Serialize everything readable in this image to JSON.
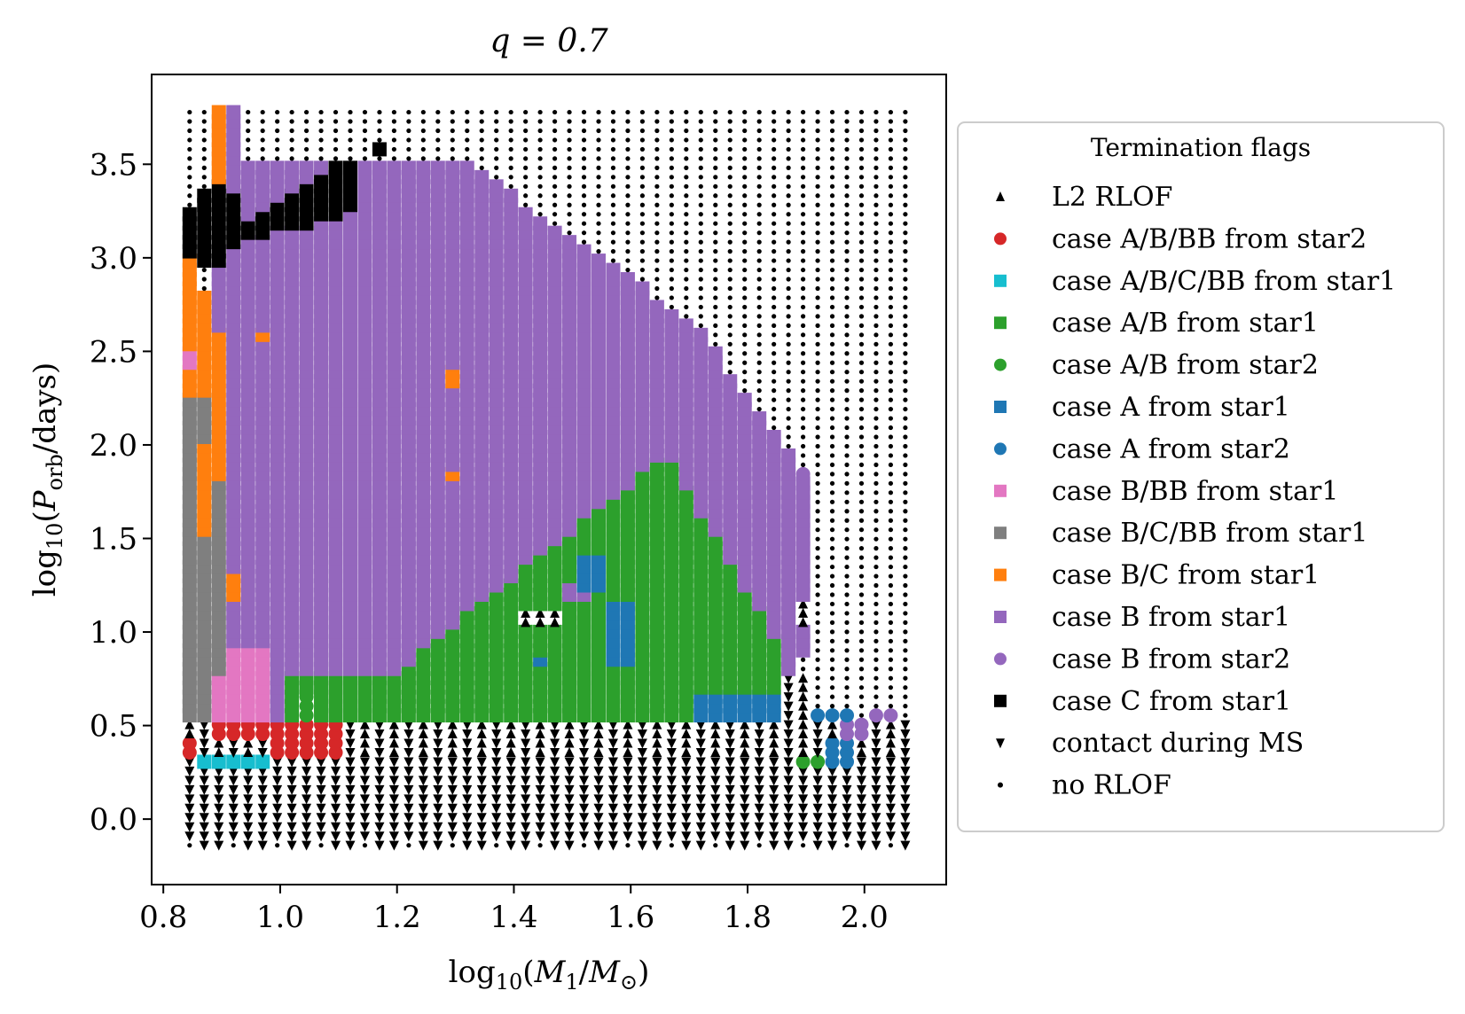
{
  "chart_data": {
    "type": "scatter",
    "title": "q = 0.7",
    "xlabel": "log10(M1/M⊙)",
    "ylabel": "log10(Porb/days)",
    "xlim": [
      0.78,
      2.14
    ],
    "ylim": [
      -0.35,
      3.98
    ],
    "xticks": [
      0.8,
      1.0,
      1.2,
      1.4,
      1.6,
      1.8,
      2.0
    ],
    "xtick_labels": [
      "0.8",
      "1.0",
      "1.2",
      "1.4",
      "1.6",
      "1.8",
      "2.0"
    ],
    "yticks": [
      0.0,
      0.5,
      1.0,
      1.5,
      2.0,
      2.5,
      3.0,
      3.5
    ],
    "ytick_labels": [
      "0.0",
      "0.5",
      "1.0",
      "1.5",
      "2.0",
      "2.5",
      "3.0",
      "3.5"
    ],
    "grid": false,
    "legend_title": "Termination flags",
    "legend_position": "outside-right",
    "grid_spec": {
      "x_start": 0.845,
      "x_step": 0.025,
      "nx": 50,
      "y_start": -0.14,
      "y_step": 0.0496,
      "ny": 80
    },
    "series": [
      {
        "name": "L2 RLOF",
        "marker": "triangle-up",
        "color": "#000000"
      },
      {
        "name": "case A/B/BB from star2",
        "marker": "circle",
        "color": "#d62728"
      },
      {
        "name": "case A/B/C/BB from star1",
        "marker": "square",
        "color": "#17becf"
      },
      {
        "name": "case A/B from star1",
        "marker": "square",
        "color": "#2ca02c"
      },
      {
        "name": "case A/B from star2",
        "marker": "circle",
        "color": "#2ca02c"
      },
      {
        "name": "case A from star1",
        "marker": "square",
        "color": "#1f77b4"
      },
      {
        "name": "case A from star2",
        "marker": "circle",
        "color": "#1f77b4"
      },
      {
        "name": "case B/BB from star1",
        "marker": "square",
        "color": "#e377c2"
      },
      {
        "name": "case B/C/BB from star1",
        "marker": "square",
        "color": "#7f7f7f"
      },
      {
        "name": "case B/C from star1",
        "marker": "square",
        "color": "#ff7f0e"
      },
      {
        "name": "case B from star1",
        "marker": "square",
        "color": "#9467bd"
      },
      {
        "name": "case B from star2",
        "marker": "circle",
        "color": "#9467bd"
      },
      {
        "name": "case C from star1",
        "marker": "square",
        "color": "#000000"
      },
      {
        "name": "contact during MS",
        "marker": "triangle-down",
        "color": "#000000"
      },
      {
        "name": "no RLOF",
        "marker": "dot",
        "color": "#000000"
      }
    ]
  }
}
